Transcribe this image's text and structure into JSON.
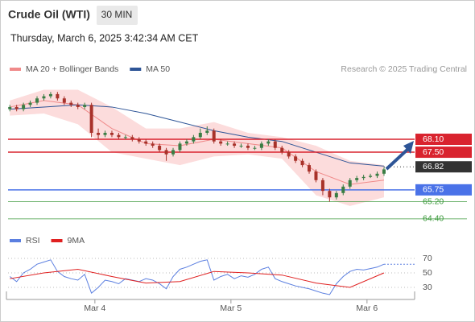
{
  "header": {
    "title": "Crude Oil (WTI)",
    "timeframe": "30 MIN",
    "datetime": "Thursday, March 6, 2025 3:42:34 AM CET",
    "credit": "Research © 2025 Trading Central"
  },
  "chart_data": [
    {
      "type": "candlestick",
      "legend": [
        {
          "name": "MA 20 + Bollinger Bands",
          "color": "#f08a8a"
        },
        {
          "name": "MA 50",
          "color": "#2e5597"
        }
      ],
      "up_color": "#3a7d44",
      "down_color": "#a8322a",
      "band_color": "#fcdcdc",
      "open": [
        69.5,
        69.6,
        69.5,
        69.7,
        69.8,
        70.0,
        70.1,
        70.2,
        70.0,
        69.8,
        69.7,
        69.6,
        69.7,
        68.4,
        68.3,
        68.4,
        68.3,
        68.2,
        68.2,
        68.1,
        68.0,
        67.9,
        67.8,
        67.6,
        67.4,
        67.6,
        67.9,
        68.0,
        68.2,
        68.4,
        68.5,
        68.0,
        67.9,
        67.9,
        67.8,
        67.8,
        67.7,
        67.7,
        67.9,
        68.0,
        67.7,
        67.5,
        67.3,
        67.1,
        66.9,
        66.6,
        66.2,
        65.7,
        65.4,
        65.6,
        65.9,
        66.2,
        66.3,
        66.35,
        66.4,
        66.5
      ],
      "high": [
        69.7,
        69.7,
        69.8,
        69.9,
        70.1,
        70.2,
        70.3,
        70.3,
        70.1,
        69.9,
        69.8,
        69.8,
        69.8,
        68.6,
        68.5,
        68.5,
        68.4,
        68.3,
        68.3,
        68.2,
        68.1,
        68.0,
        67.9,
        67.7,
        67.7,
        68.0,
        68.1,
        68.3,
        68.6,
        68.7,
        68.6,
        68.1,
        68.0,
        68.0,
        67.9,
        67.9,
        67.8,
        68.0,
        68.1,
        68.1,
        67.8,
        67.6,
        67.4,
        67.2,
        67.0,
        66.7,
        66.3,
        65.8,
        65.7,
        66.0,
        66.3,
        66.4,
        66.45,
        66.5,
        66.6,
        66.8
      ],
      "low": [
        69.4,
        69.4,
        69.4,
        69.6,
        69.7,
        69.9,
        70.0,
        69.9,
        69.7,
        69.6,
        69.5,
        69.5,
        68.2,
        68.1,
        68.2,
        68.2,
        68.1,
        68.1,
        68.0,
        67.9,
        67.8,
        67.7,
        67.5,
        67.1,
        67.3,
        67.5,
        67.8,
        67.9,
        68.1,
        68.3,
        67.9,
        67.8,
        67.8,
        67.7,
        67.7,
        67.6,
        67.6,
        67.6,
        67.8,
        67.6,
        67.4,
        67.2,
        67.0,
        66.8,
        66.5,
        66.1,
        65.5,
        65.2,
        65.3,
        65.5,
        65.8,
        66.1,
        66.2,
        66.3,
        66.3,
        66.4
      ],
      "close": [
        69.6,
        69.5,
        69.7,
        69.8,
        70.0,
        70.1,
        70.2,
        70.0,
        69.8,
        69.7,
        69.6,
        69.7,
        68.4,
        68.3,
        68.4,
        68.3,
        68.2,
        68.2,
        68.1,
        68.0,
        67.9,
        67.8,
        67.6,
        67.4,
        67.6,
        67.9,
        68.0,
        68.2,
        68.4,
        68.5,
        68.0,
        67.9,
        67.9,
        67.8,
        67.8,
        67.7,
        67.7,
        67.9,
        68.0,
        67.7,
        67.5,
        67.3,
        67.1,
        66.9,
        66.6,
        66.2,
        65.7,
        65.4,
        65.6,
        65.9,
        66.2,
        66.3,
        66.35,
        66.4,
        66.5,
        66.7
      ],
      "bands": {
        "x": [
          0,
          5,
          10,
          15,
          20,
          25,
          30,
          35,
          40,
          45,
          50,
          55
        ],
        "upper": [
          69.9,
          70.4,
          70.4,
          69.6,
          68.6,
          68.6,
          68.9,
          68.4,
          68.2,
          67.8,
          67.1,
          66.9
        ],
        "mid": [
          69.6,
          69.9,
          69.7,
          68.6,
          67.9,
          67.8,
          68.1,
          67.9,
          67.7,
          66.6,
          66.0,
          66.2
        ],
        "lower": [
          69.2,
          69.3,
          68.8,
          67.5,
          67.2,
          66.9,
          67.3,
          67.4,
          67.2,
          65.5,
          65.0,
          65.4
        ],
        "ma50": [
          69.5,
          69.6,
          69.7,
          69.6,
          69.3,
          68.9,
          68.5,
          68.2,
          68.0,
          67.5,
          67.0,
          66.85
        ]
      },
      "levels": [
        {
          "value": 68.1,
          "label": "68.10",
          "color": "#d9232e",
          "style": "tag"
        },
        {
          "value": 67.5,
          "label": "67.50",
          "color": "#d9232e",
          "style": "tag"
        },
        {
          "value": 66.82,
          "label": "66.82",
          "color": "#333333",
          "style": "current"
        },
        {
          "value": 65.75,
          "label": "65.75",
          "color": "#4a72e8",
          "style": "tag"
        },
        {
          "value": 65.2,
          "label": "65.20",
          "color": "#3c9a3c",
          "style": "text"
        },
        {
          "value": 64.4,
          "label": "64.40",
          "color": "#3c9a3c",
          "style": "text"
        }
      ],
      "xlim": [
        -0.5,
        59.5
      ],
      "ylim": [
        63.91,
        70.87
      ],
      "xticks": [
        {
          "value": 12.5,
          "label": "Mar 4"
        },
        {
          "value": 32.5,
          "label": "Mar 5"
        },
        {
          "value": 52.5,
          "label": "Mar 6"
        }
      ]
    },
    {
      "type": "rsi",
      "series": [
        {
          "name": "RSI",
          "color": "#5b7fe0",
          "values": [
            45,
            38,
            50,
            55,
            62,
            65,
            68,
            52,
            45,
            42,
            40,
            48,
            22,
            30,
            40,
            38,
            35,
            42,
            40,
            38,
            42,
            40,
            35,
            28,
            45,
            55,
            58,
            62,
            66,
            68,
            40,
            45,
            48,
            42,
            46,
            44,
            48,
            55,
            58,
            42,
            38,
            35,
            32,
            30,
            28,
            25,
            22,
            20,
            35,
            45,
            52,
            55,
            54,
            56,
            58,
            62
          ]
        },
        {
          "name": "9MA",
          "color": "#e02020",
          "x": [
            0,
            5,
            10,
            15,
            20,
            25,
            30,
            35,
            40,
            45,
            50,
            55
          ],
          "values": [
            42,
            50,
            55,
            45,
            36,
            38,
            52,
            50,
            47,
            36,
            30,
            50
          ]
        }
      ],
      "xlim": [
        -0.5,
        59.5
      ],
      "ylim": [
        13.3,
        87.8
      ],
      "yticks": [
        30,
        50,
        70
      ]
    }
  ]
}
